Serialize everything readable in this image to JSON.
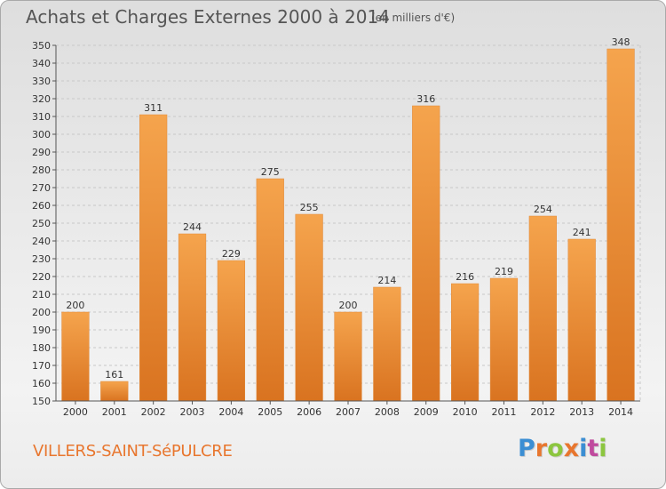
{
  "title": "Achats et Charges Externes 2000 à 2014",
  "subtitle": "(en milliers d'€)",
  "location": "VILLERS-SAINT-SéPULCRE",
  "logo": {
    "letters": [
      "P",
      "r",
      "o",
      "x",
      "i",
      "t",
      "i"
    ],
    "colors": [
      "#3b8ed3",
      "#e8762e",
      "#8cc63f",
      "#e8762e",
      "#3b8ed3",
      "#c04b9e",
      "#8cc63f"
    ]
  },
  "colors": {
    "bar_light": "#f5a44d",
    "bar_dark": "#d97320",
    "grid": "#c8c8c8"
  },
  "chart_data": {
    "type": "bar",
    "title": "Achats et Charges Externes 2000 à 2014",
    "subtitle": "(en milliers d'€)",
    "categories": [
      "2000",
      "2001",
      "2002",
      "2003",
      "2004",
      "2005",
      "2006",
      "2007",
      "2008",
      "2009",
      "2010",
      "2011",
      "2012",
      "2013",
      "2014"
    ],
    "values": [
      200,
      161,
      311,
      244,
      229,
      275,
      255,
      200,
      214,
      316,
      216,
      219,
      254,
      241,
      348
    ],
    "ylim": [
      150,
      350
    ],
    "yticks": [
      150,
      160,
      170,
      180,
      190,
      200,
      210,
      220,
      230,
      240,
      250,
      260,
      270,
      280,
      290,
      300,
      310,
      320,
      330,
      340,
      350
    ],
    "grid": true,
    "data_labels": true
  }
}
